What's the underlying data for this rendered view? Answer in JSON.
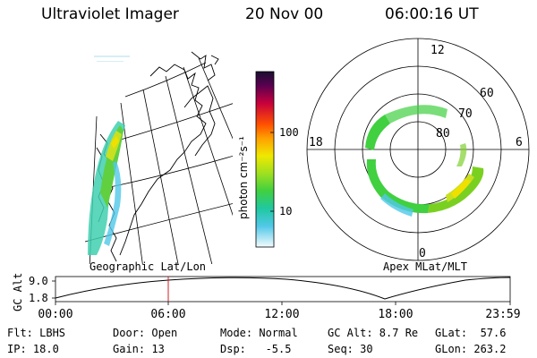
{
  "header": {
    "instrument": "Ultraviolet Imager",
    "date": "20 Nov 00",
    "time": "06:00:16 UT"
  },
  "colorbar": {
    "label": "photon cm⁻²s⁻¹",
    "ticks": [
      "100",
      "10"
    ],
    "colors": [
      "#1a1030",
      "#7a0040",
      "#c8003c",
      "#ff3c00",
      "#ff9a00",
      "#f0e000",
      "#9ae000",
      "#40d040",
      "#20c8a0",
      "#40c8e8",
      "#b0e8f0",
      "#ffffff"
    ]
  },
  "map_labels": {
    "geographic": "Geographic Lat/Lon",
    "apex": "Apex MLat/MLT"
  },
  "polar_plot": {
    "mlt_labels": [
      "12",
      "18",
      "6",
      "0"
    ],
    "lat_labels": [
      "60",
      "70",
      "80"
    ]
  },
  "altitude_plot": {
    "ylabel": "GC Alt",
    "yticks": [
      "9.0",
      "1.8"
    ],
    "xticks": [
      "00:00",
      "06:00",
      "12:00",
      "18:00",
      "23:59"
    ],
    "current_time_marker": "06:00"
  },
  "footer": {
    "row1": {
      "filter": "Flt: LBHS",
      "door": "Door: Open",
      "mode": "Mode: Normal",
      "gc_alt": "GC Alt: 8.7 Re",
      "glat": "GLat:  57.6"
    },
    "row2": {
      "ip": "IP: 18.0",
      "gain": "Gain: 13",
      "dsp": "Dsp:   -5.5",
      "seq": "Seq: 30",
      "glon": "GLon: 263.2"
    }
  }
}
